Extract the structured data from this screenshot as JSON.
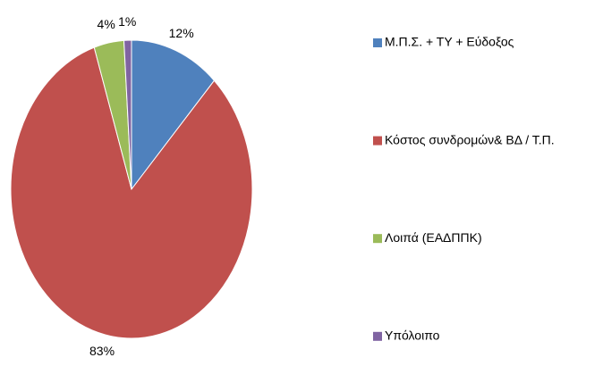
{
  "chart_data": {
    "type": "pie",
    "categories": [
      "Μ.Π.Σ. + ΤΥ + Εύδοξος",
      "Κόστος  συνδρομών& ΒΔ / Τ.Π.",
      "Λοιπά (ΕΑΔΠΠΚ)",
      "Υπόλοιπο"
    ],
    "values": [
      12,
      83,
      4,
      1
    ],
    "value_labels": [
      "12%",
      "83%",
      "4%",
      "1%"
    ],
    "colors": [
      "#4f81bd",
      "#c0504d",
      "#9bbb59",
      "#8064a2"
    ],
    "legend": "right"
  }
}
